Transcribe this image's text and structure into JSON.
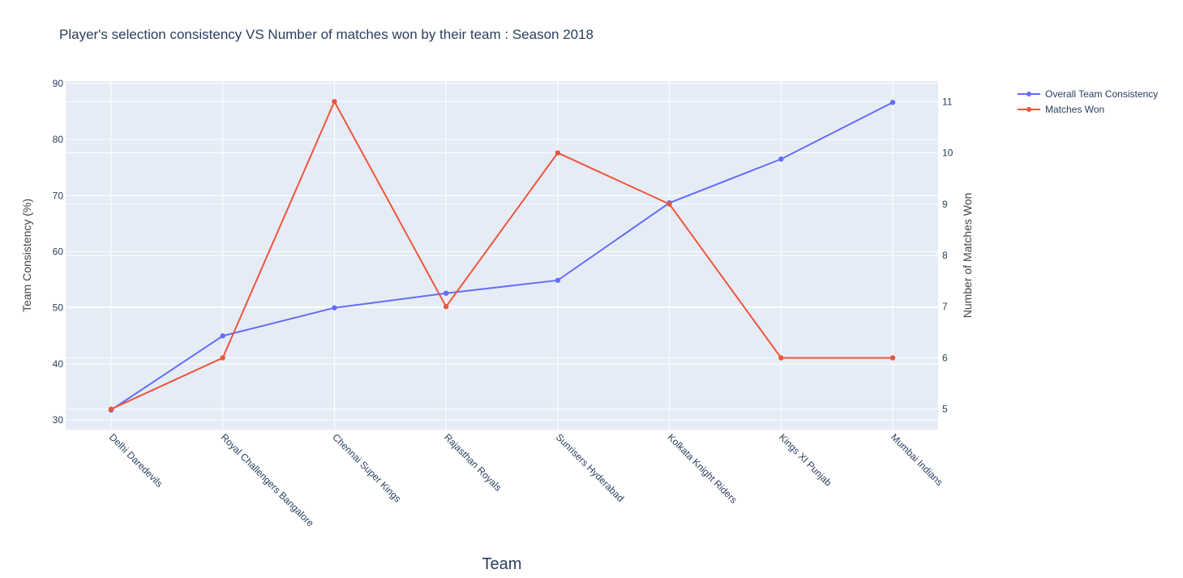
{
  "chart_data": {
    "type": "line",
    "title": "Player's selection consistency VS Number of matches won by their team : Season 2018",
    "xlabel": "Team",
    "ylabel": "Team Consistency (%)",
    "y2label": "Number of Matches Won",
    "categories": [
      "Delhi Daredevils",
      "Royal Challengers Bangalore",
      "Chennai Super Kings",
      "Rajasthan Royals",
      "Sunrisers Hyderabad",
      "Kolkata Knight Riders",
      "Kings XI Punjab",
      "Mumbai Indians"
    ],
    "ylim": [
      28.3,
      90.4
    ],
    "y2lim": [
      4.6,
      11.4
    ],
    "yticks": [
      30,
      40,
      50,
      60,
      70,
      80,
      90
    ],
    "y2ticks": [
      5,
      6,
      7,
      8,
      9,
      10,
      11
    ],
    "grid": true,
    "legend_position": "top-right",
    "series": [
      {
        "name": "Overall Team Consistency",
        "axis": "left",
        "color": "#636efa",
        "values": [
          31.8,
          45.0,
          50.0,
          52.6,
          54.9,
          68.7,
          76.5,
          86.6
        ]
      },
      {
        "name": "Matches Won",
        "axis": "right",
        "color": "#ef553b",
        "values": [
          5,
          6,
          11,
          7,
          10,
          9,
          6,
          6
        ]
      }
    ]
  },
  "colors": {
    "plot_bg": "#e5ecf6",
    "grid": "#ffffff",
    "text": "#2a3f5f"
  }
}
